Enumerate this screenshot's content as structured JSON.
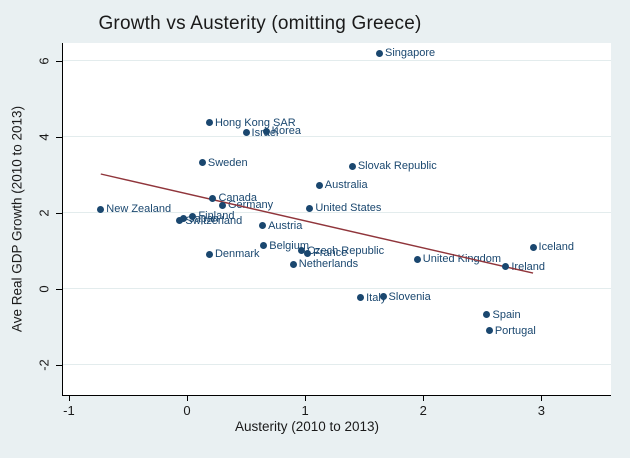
{
  "chart_data": {
    "type": "scatter",
    "title": "Growth vs Austerity (omitting Greece)",
    "xlabel": "Austerity (2010 to 2013)",
    "ylabel": "Ave Real GDP Growth (2010 to 2013)",
    "xlim": [
      -1.05,
      3.59
    ],
    "ylim": [
      -2.8,
      6.47
    ],
    "xticks": [
      -1,
      0,
      1,
      2,
      3
    ],
    "yticks": [
      -2,
      0,
      2,
      4,
      6
    ],
    "grid": "horizontal gridlines at y ticks",
    "legend": "none",
    "colors": {
      "background": "#e9f0f2",
      "plot_background": "#ffffff",
      "gridline": "#e3eced",
      "axis": "#000000",
      "text": "#1a1a1a",
      "marker": "#1a476f",
      "point_label": "#1a476f",
      "trend": "#90353b"
    },
    "trend_line": {
      "x1": -0.73,
      "y1": 3.02,
      "x2": 2.93,
      "y2": 0.41
    },
    "points": [
      {
        "name": "New Zealand",
        "x": -0.73,
        "y": 2.09
      },
      {
        "name": "Switzerland",
        "x": -0.06,
        "y": 1.79
      },
      {
        "name": "Japan",
        "x": -0.03,
        "y": 1.84
      },
      {
        "name": "Finland",
        "x": 0.05,
        "y": 1.91
      },
      {
        "name": "Sweden",
        "x": 0.13,
        "y": 3.32
      },
      {
        "name": "Denmark",
        "x": 0.19,
        "y": 0.91
      },
      {
        "name": "Hong Kong SAR",
        "x": 0.19,
        "y": 4.37
      },
      {
        "name": "Canada",
        "x": 0.22,
        "y": 2.38
      },
      {
        "name": "Germany",
        "x": 0.3,
        "y": 2.2
      },
      {
        "name": "Israel",
        "x": 0.5,
        "y": 4.1
      },
      {
        "name": "Austria",
        "x": 0.64,
        "y": 1.66
      },
      {
        "name": "Belgium",
        "x": 0.65,
        "y": 1.13
      },
      {
        "name": "Korea",
        "x": 0.67,
        "y": 4.14
      },
      {
        "name": "Netherlands",
        "x": 0.9,
        "y": 0.64
      },
      {
        "name": "Czech Republic",
        "x": 0.97,
        "y": 1.0
      },
      {
        "name": "France",
        "x": 1.02,
        "y": 0.93
      },
      {
        "name": "United States",
        "x": 1.04,
        "y": 2.12
      },
      {
        "name": "Australia",
        "x": 1.12,
        "y": 2.73
      },
      {
        "name": "Slovak Republic",
        "x": 1.4,
        "y": 3.23
      },
      {
        "name": "Italy",
        "x": 1.47,
        "y": -0.24
      },
      {
        "name": "Singapore",
        "x": 1.63,
        "y": 6.2
      },
      {
        "name": "Slovenia",
        "x": 1.66,
        "y": -0.21
      },
      {
        "name": "United Kingdom",
        "x": 1.95,
        "y": 0.78
      },
      {
        "name": "Spain",
        "x": 2.54,
        "y": -0.69
      },
      {
        "name": "Portugal",
        "x": 2.56,
        "y": -1.11
      },
      {
        "name": "Ireland",
        "x": 2.7,
        "y": 0.58
      },
      {
        "name": "Iceland",
        "x": 2.93,
        "y": 1.09
      }
    ]
  }
}
